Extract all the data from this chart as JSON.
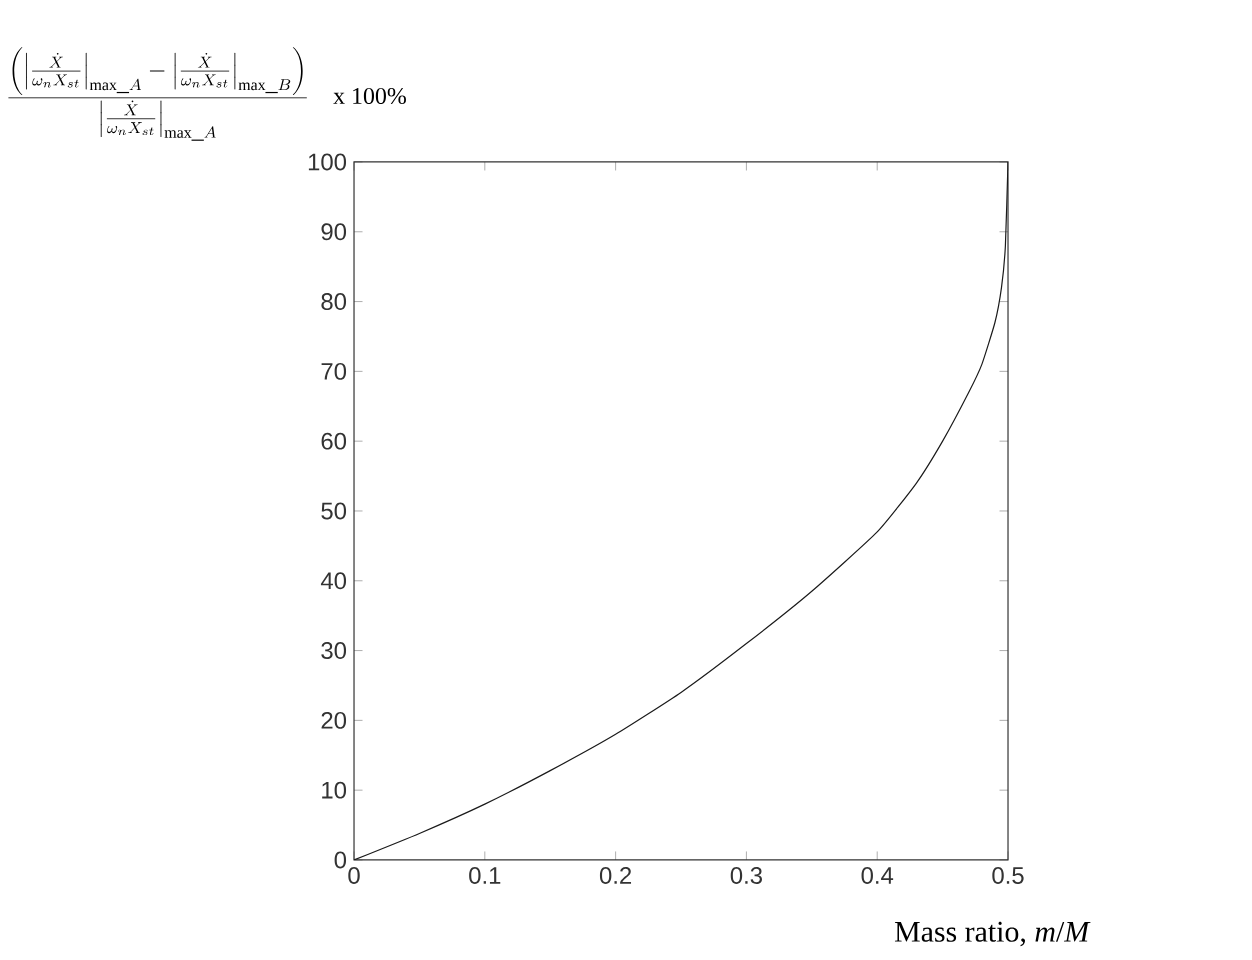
{
  "chart_data": {
    "type": "line",
    "xlabel": "Mass ratio, *m*/*M*",
    "ylabel": "\\frac{\\left(\\left|\\frac{\\dot{X}}{\\omega_n X_{st}}\\right|_{\\mathrm{max\\_}A} - \\left|\\frac{\\dot{X}}{\\omega_n X_{st}}\\right|_{\\mathrm{max\\_}B}\\right)}{\\left|\\frac{\\dot{X}}{\\omega_n X_{st}}\\right|_{\\mathrm{max\\_}A}}\\quad\\mathrm{x\\ 100\\%}",
    "x": [
      0,
      0.05,
      0.1,
      0.15,
      0.2,
      0.25,
      0.3,
      0.35,
      0.4,
      0.43,
      0.45,
      0.47,
      0.48,
      0.49,
      0.495,
      0.498,
      0.5
    ],
    "series": [
      {
        "color": "#1a1a1a",
        "values": [
          0,
          3.8,
          8,
          12.8,
          18,
          24,
          31,
          38.5,
          47,
          54,
          60,
          67,
          71,
          77,
          82,
          88,
          100
        ]
      }
    ],
    "xlim": [
      0,
      0.5
    ],
    "ylim": [
      0,
      100
    ],
    "xticks": [
      0,
      0.1,
      0.2,
      0.3,
      0.4,
      0.5
    ],
    "yticks": [
      0,
      10,
      20,
      30,
      40,
      50,
      60,
      70,
      80,
      90,
      100
    ],
    "grid": false,
    "marker": "none",
    "line_style": "solid"
  }
}
